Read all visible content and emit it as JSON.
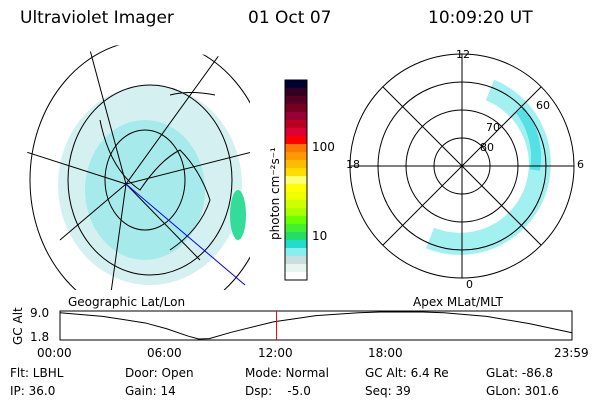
{
  "header": {
    "instrument": "Ultraviolet Imager",
    "date": "01 Oct 07",
    "time": "10:09:20 UT"
  },
  "left_panel": {
    "label": "Geographic Lat/Lon"
  },
  "right_panel": {
    "label": "Apex MLat/MLT",
    "mlt_labels": [
      "12",
      "6",
      "0",
      "18"
    ],
    "mlat_labels": [
      "80",
      "70",
      "60"
    ]
  },
  "colorbar": {
    "label": "photon cm⁻²s⁻¹",
    "ticks": [
      "100",
      "10"
    ],
    "colors": [
      "#000033",
      "#330022",
      "#550022",
      "#770022",
      "#990033",
      "#bb0022",
      "#dd0033",
      "#ff0000",
      "#ff7700",
      "#ff9900",
      "#ffbb00",
      "#ffdd00",
      "#ffff77",
      "#ffff00",
      "#eeff00",
      "#ccff00",
      "#aaff00",
      "#66ff00",
      "#44ee33",
      "#22dd66",
      "#22ddcc",
      "#88eeee",
      "#ccdddd",
      "#e8f4ee",
      "#ffffff"
    ]
  },
  "chart_data": {
    "type": "line",
    "title": "",
    "xlabel": "",
    "ylabel": "GC Alt",
    "xticks": [
      "00:00",
      "06:00",
      "12:00",
      "18:00",
      "23:59"
    ],
    "yticks": [
      "9.0",
      "1.8"
    ],
    "ylim": [
      1.8,
      9.2
    ],
    "xlim": [
      0,
      24
    ],
    "x": [
      0,
      2,
      4,
      5,
      6,
      6.5,
      7,
      8,
      10,
      12,
      14,
      15,
      16,
      17,
      18,
      20,
      22,
      24
    ],
    "y": [
      9.0,
      8.0,
      6.2,
      4.6,
      2.6,
      1.8,
      1.9,
      3.6,
      6.5,
      8.2,
      9.0,
      9.2,
      9.2,
      9.2,
      9.0,
      8.0,
      6.0,
      3.5
    ],
    "current_time_marker": 10.15,
    "marker_color": "#ff0000"
  },
  "info": {
    "flt": "Flt: LBHL",
    "ip": "IP: 36.0",
    "door": "Door: Open",
    "gain": "Gain: 14",
    "mode": "Mode: Normal",
    "dsp": "Dsp:    -5.0",
    "gcalt": "GC Alt: 6.4 Re",
    "seq": "Seq: 39",
    "glat": "GLat: -86.8",
    "glon": "GLon: 301.6"
  }
}
